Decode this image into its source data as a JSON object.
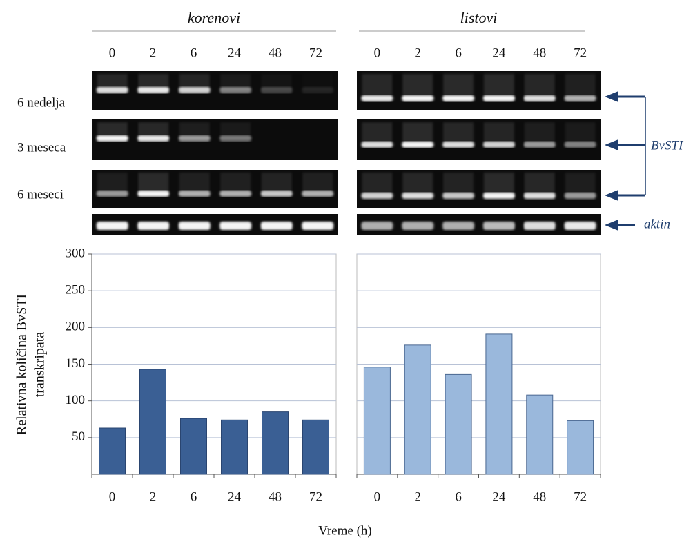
{
  "figure": {
    "x_label": "Vreme (h)",
    "y_label": [
      "Relativna količina BvSTI",
      "transkripata"
    ],
    "gel_rows": [
      "6 nedelja",
      "3 meseca",
      "6 meseci"
    ],
    "gel_markers": [
      "BvSTI",
      "aktin"
    ]
  },
  "chart_data": [
    {
      "type": "bar",
      "title": "korenovi",
      "categories": [
        "0",
        "2",
        "6",
        "24",
        "48",
        "72"
      ],
      "values": [
        63,
        143,
        76,
        74,
        85,
        74
      ],
      "color": "#3a5f94",
      "ylim": [
        0,
        300
      ],
      "yticks": [
        50,
        100,
        150,
        200,
        250,
        300
      ],
      "grid": true,
      "show_tick_labels": true
    },
    {
      "type": "bar",
      "title": "listovi",
      "categories": [
        "0",
        "2",
        "6",
        "24",
        "48",
        "72"
      ],
      "values": [
        146,
        176,
        136,
        191,
        108,
        73
      ],
      "color": "#9ab8dc",
      "ylim": [
        0,
        300
      ],
      "yticks": [
        50,
        100,
        150,
        200,
        250,
        300
      ],
      "grid": true,
      "show_tick_labels": false
    }
  ]
}
